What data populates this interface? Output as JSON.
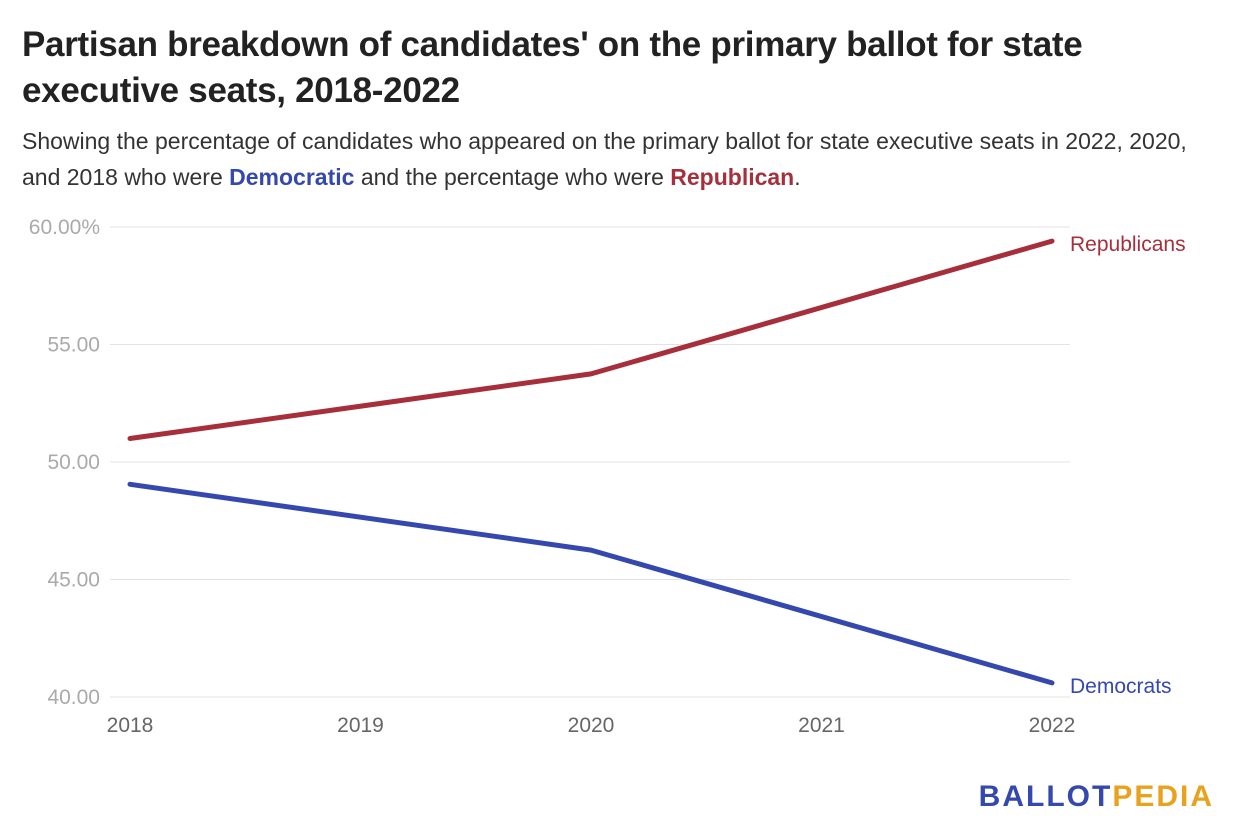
{
  "title": "Partisan breakdown of candidates' on the primary ballot for state executive seats, 2018-2022",
  "subtitle": {
    "before": "Showing the percentage of candidates who appeared on the primary ballot for state executive seats in 2022, 2020, and 2018 who were ",
    "dem_word": "Democratic",
    "middle": " and the percentage who were ",
    "rep_word": "Republican",
    "after": "."
  },
  "colors": {
    "democrats": "#3548ad",
    "republicans": "#a72f3b",
    "grid": "#e3e3e3",
    "brand_orange": "#e8a21d"
  },
  "chart_data": {
    "type": "line",
    "title": "Partisan breakdown of candidates' on the primary ballot for state executive seats, 2018-2022",
    "x": [
      "2018",
      "2019",
      "2020",
      "2021",
      "2022"
    ],
    "series": [
      {
        "name": "Republicans",
        "color": "#a72f3b",
        "points": [
          [
            2018,
            51.0
          ],
          [
            2020,
            53.75
          ],
          [
            2022,
            59.4
          ]
        ]
      },
      {
        "name": "Democrats",
        "color": "#3548ad",
        "points": [
          [
            2018,
            49.05
          ],
          [
            2020,
            46.25
          ],
          [
            2022,
            40.6
          ]
        ]
      }
    ],
    "ylim": [
      40,
      60
    ],
    "yticks": [
      60,
      55,
      50,
      45,
      40
    ],
    "ytick_labels": [
      "60.00%",
      "55.00",
      "50.00",
      "45.00",
      "40.00"
    ],
    "xlabel": "",
    "ylabel": "",
    "grid": true,
    "legend": "direct labels at line ends"
  },
  "logo": {
    "part1": "BALLOT",
    "part2": "PEDIA"
  }
}
